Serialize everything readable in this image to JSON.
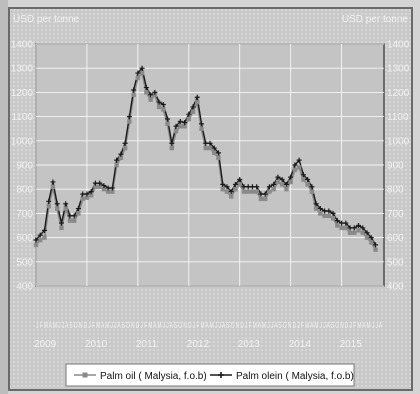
{
  "colors": {
    "background": "#d4d4d4",
    "plot_area": "#c6c6c6",
    "frame": "#5a5a5a",
    "grid": "#ffffff",
    "text": "#f2f2f2",
    "palm_oil": "#8a8a8a",
    "palm_olein": "#1a1a1a",
    "legend_bg": "#ffffff",
    "legend_text": "#111111"
  },
  "chart_data": {
    "type": "line",
    "ylabel_left": "USD per tonne",
    "ylabel_right": "USD per tonne",
    "ylim": [
      400,
      1400
    ],
    "yticks": [
      400,
      500,
      600,
      700,
      800,
      900,
      1000,
      1100,
      1200,
      1300,
      1400
    ],
    "ytick_labels": [
      "400",
      "500",
      "600",
      "700",
      "800",
      "900",
      "1000",
      "1100",
      "1200",
      "1300",
      "1400"
    ],
    "x_range": [
      2009.0,
      2015.833
    ],
    "year_labels": [
      {
        "label": "2009",
        "x": 2009
      },
      {
        "label": "2010",
        "x": 2010
      },
      {
        "label": "2011",
        "x": 2011
      },
      {
        "label": "2012",
        "x": 2012
      },
      {
        "label": "2013",
        "x": 2013
      },
      {
        "label": "2014",
        "x": 2014
      },
      {
        "label": "2015",
        "x": 2015
      }
    ],
    "month_ticks": "J F M A M J J A S O N D J F M A M J J A S O N D J F M A M J J A S O N D J F M A M J J A S O N D J F M A M J J A S O N D J F M A M J J A S O N D J F M A M J J A",
    "grid": true,
    "legend_position": "bottom-center",
    "series": [
      {
        "name": "Palm oil ( Malysia, f.o.b)",
        "marker": "square",
        "x": [
          2009.0,
          2009.083,
          2009.167,
          2009.25,
          2009.333,
          2009.417,
          2009.5,
          2009.583,
          2009.667,
          2009.75,
          2009.833,
          2009.917,
          2010.0,
          2010.083,
          2010.167,
          2010.25,
          2010.333,
          2010.417,
          2010.5,
          2010.583,
          2010.667,
          2010.75,
          2010.833,
          2010.917,
          2011.0,
          2011.083,
          2011.167,
          2011.25,
          2011.333,
          2011.417,
          2011.5,
          2011.583,
          2011.667,
          2011.75,
          2011.833,
          2011.917,
          2012.0,
          2012.083,
          2012.167,
          2012.25,
          2012.333,
          2012.417,
          2012.5,
          2012.583,
          2012.667,
          2012.75,
          2012.833,
          2012.917,
          2013.0,
          2013.083,
          2013.167,
          2013.25,
          2013.333,
          2013.417,
          2013.5,
          2013.583,
          2013.667,
          2013.75,
          2013.833,
          2013.917,
          2014.0,
          2014.083,
          2014.167,
          2014.25,
          2014.333,
          2014.417,
          2014.5,
          2014.583,
          2014.667,
          2014.75,
          2014.833,
          2014.917,
          2015.0,
          2015.083,
          2015.167,
          2015.25,
          2015.333,
          2015.417,
          2015.5,
          2015.583,
          2015.667
        ],
        "values": [
          570,
          590,
          600,
          730,
          810,
          720,
          640,
          720,
          670,
          670,
          700,
          760,
          765,
          775,
          810,
          810,
          800,
          790,
          790,
          900,
          930,
          970,
          1080,
          1190,
          1260,
          1280,
          1200,
          1170,
          1190,
          1140,
          1130,
          1070,
          970,
          1040,
          1060,
          1060,
          1090,
          1120,
          1160,
          1050,
          970,
          970,
          950,
          930,
          800,
          790,
          770,
          800,
          820,
          790,
          790,
          790,
          790,
          760,
          760,
          790,
          800,
          830,
          820,
          800,
          830,
          880,
          890,
          840,
          820,
          790,
          720,
          700,
          690,
          690,
          680,
          650,
          640,
          640,
          620,
          620,
          630,
          620,
          600,
          580,
          550
        ]
      },
      {
        "name": "Palm olein ( Malysia, f.o.b)",
        "marker": "plus",
        "x": [
          2009.0,
          2009.083,
          2009.167,
          2009.25,
          2009.333,
          2009.417,
          2009.5,
          2009.583,
          2009.667,
          2009.75,
          2009.833,
          2009.917,
          2010.0,
          2010.083,
          2010.167,
          2010.25,
          2010.333,
          2010.417,
          2010.5,
          2010.583,
          2010.667,
          2010.75,
          2010.833,
          2010.917,
          2011.0,
          2011.083,
          2011.167,
          2011.25,
          2011.333,
          2011.417,
          2011.5,
          2011.583,
          2011.667,
          2011.75,
          2011.833,
          2011.917,
          2012.0,
          2012.083,
          2012.167,
          2012.25,
          2012.333,
          2012.417,
          2012.5,
          2012.583,
          2012.667,
          2012.75,
          2012.833,
          2012.917,
          2013.0,
          2013.083,
          2013.167,
          2013.25,
          2013.333,
          2013.417,
          2013.5,
          2013.583,
          2013.667,
          2013.75,
          2013.833,
          2013.917,
          2014.0,
          2014.083,
          2014.167,
          2014.25,
          2014.333,
          2014.417,
          2014.5,
          2014.583,
          2014.667,
          2014.75,
          2014.833,
          2014.917,
          2015.0,
          2015.083,
          2015.167,
          2015.25,
          2015.333,
          2015.417,
          2015.5,
          2015.583,
          2015.667
        ],
        "values": [
          590,
          610,
          630,
          750,
          830,
          740,
          660,
          740,
          690,
          690,
          720,
          780,
          780,
          790,
          825,
          825,
          815,
          805,
          805,
          920,
          945,
          990,
          1100,
          1210,
          1280,
          1300,
          1220,
          1190,
          1200,
          1160,
          1150,
          1090,
          990,
          1060,
          1080,
          1075,
          1110,
          1140,
          1180,
          1070,
          990,
          990,
          970,
          950,
          820,
          810,
          790,
          820,
          840,
          810,
          810,
          810,
          810,
          780,
          780,
          810,
          820,
          850,
          840,
          820,
          850,
          900,
          920,
          860,
          840,
          810,
          740,
          720,
          710,
          710,
          700,
          670,
          660,
          660,
          640,
          640,
          650,
          640,
          620,
          600,
          570
        ]
      }
    ]
  }
}
